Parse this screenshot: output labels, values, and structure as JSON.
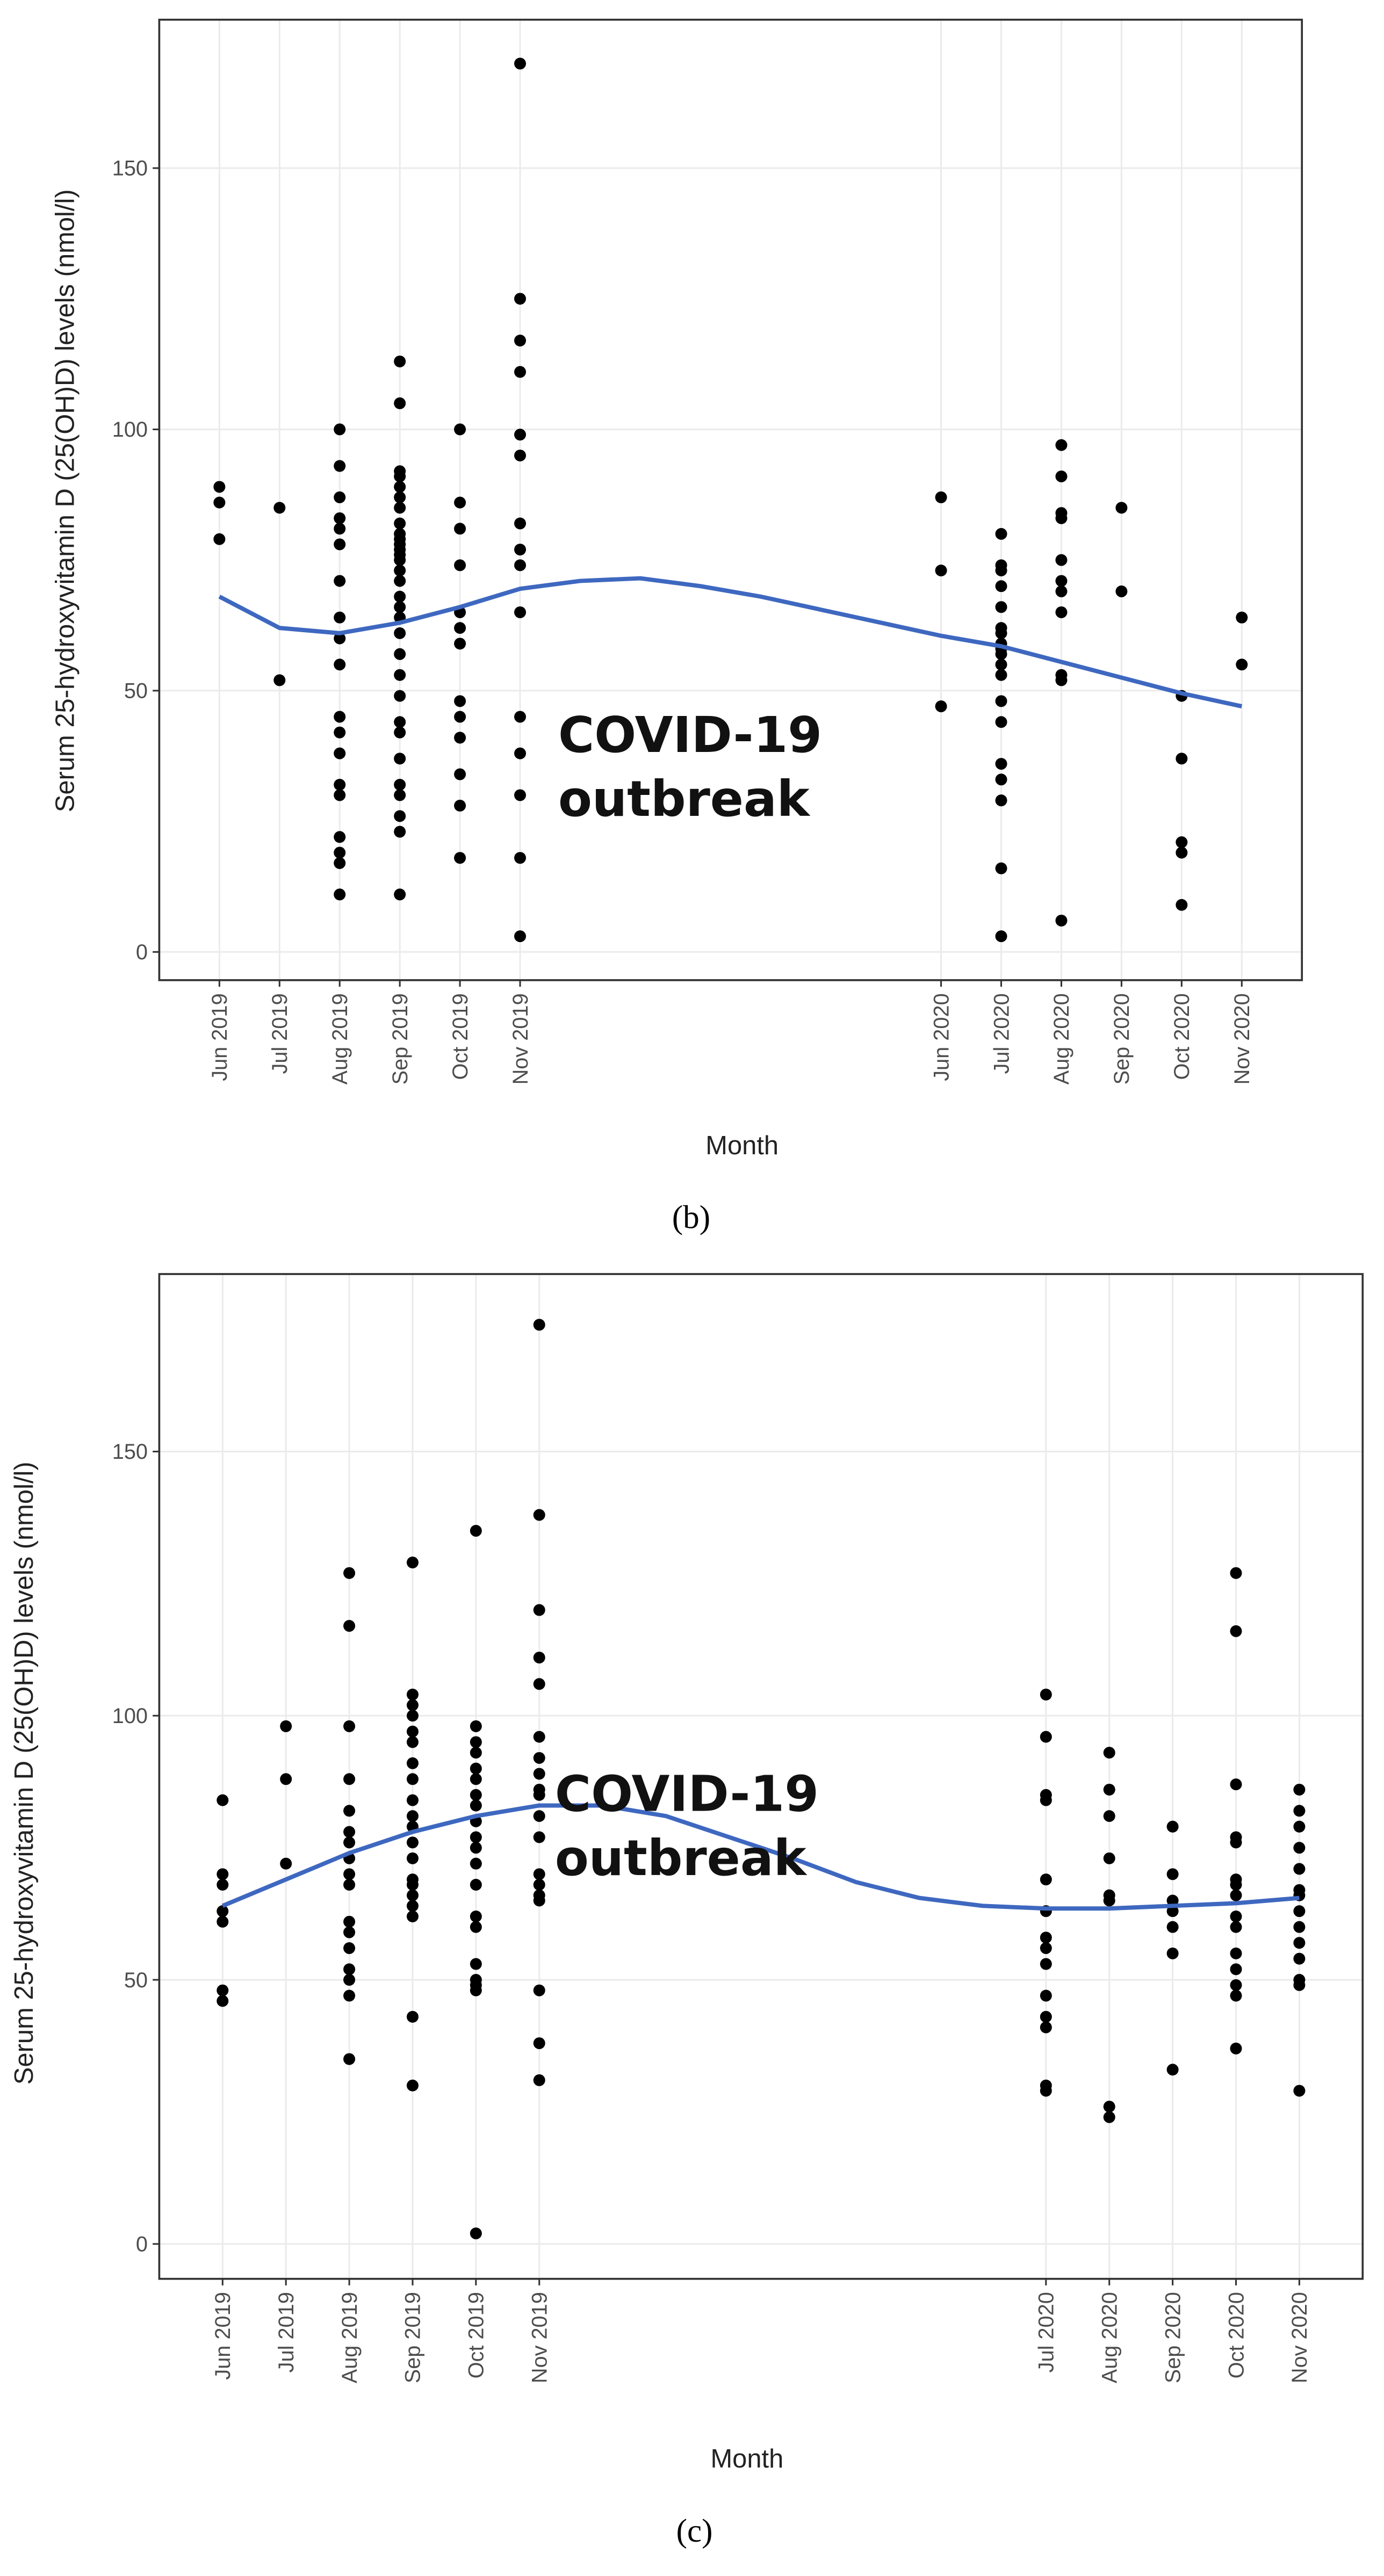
{
  "chart_data": [
    {
      "type": "scatter",
      "caption": "(b)",
      "xlabel": "Month",
      "ylabel": "Serum 25-hydroxyvitamin D (25(OH)D) levels (nmol/l)",
      "annotation": [
        "COVID-19",
        "outbreak"
      ],
      "xlim": [
        "2019-05",
        "2020-12"
      ],
      "ylim": [
        -5.4,
        178.4
      ],
      "yticks": [
        0,
        50,
        100,
        150
      ],
      "grid": true,
      "xticks": [
        {
          "value": "2019-06",
          "label": "Jun 2019"
        },
        {
          "value": "2019-07",
          "label": "Jul 2019"
        },
        {
          "value": "2019-08",
          "label": "Aug 2019"
        },
        {
          "value": "2019-09",
          "label": "Sep 2019"
        },
        {
          "value": "2019-10",
          "label": "Oct 2019"
        },
        {
          "value": "2019-11",
          "label": "Nov 2019"
        },
        {
          "value": "2020-06",
          "label": "Jun 2020"
        },
        {
          "value": "2020-07",
          "label": "Jul 2020"
        },
        {
          "value": "2020-08",
          "label": "Aug 2020"
        },
        {
          "value": "2020-09",
          "label": "Sep 2020"
        },
        {
          "value": "2020-10",
          "label": "Oct 2020"
        },
        {
          "value": "2020-11",
          "label": "Nov 2020"
        }
      ],
      "point_color": "#000000",
      "points": [
        {
          "x": "2019-06",
          "values": [
            89,
            86,
            79
          ]
        },
        {
          "x": "2019-07",
          "values": [
            85,
            52
          ]
        },
        {
          "x": "2019-08",
          "values": [
            100,
            93,
            87,
            83,
            81,
            78,
            71,
            64,
            60,
            55,
            45,
            42,
            38,
            32,
            30,
            22,
            19,
            17,
            11
          ]
        },
        {
          "x": "2019-09",
          "values": [
            113,
            105,
            92,
            91,
            89,
            87,
            85,
            82,
            80,
            79,
            78,
            77,
            76,
            75,
            73,
            71,
            68,
            66,
            64,
            61,
            57,
            53,
            49,
            44,
            42,
            37,
            32,
            30,
            26,
            23,
            11
          ]
        },
        {
          "x": "2019-10",
          "values": [
            100,
            86,
            81,
            74,
            65,
            62,
            59,
            48,
            45,
            41,
            34,
            28,
            18
          ]
        },
        {
          "x": "2019-11",
          "values": [
            170,
            125,
            117,
            111,
            99,
            95,
            82,
            77,
            74,
            65,
            45,
            38,
            30,
            18,
            3
          ]
        },
        {
          "x": "2020-06",
          "values": [
            87,
            73,
            47
          ]
        },
        {
          "x": "2020-07",
          "values": [
            80,
            74,
            73,
            70,
            66,
            62,
            61,
            59,
            58,
            57,
            55,
            53,
            48,
            44,
            36,
            33,
            29,
            16,
            3
          ]
        },
        {
          "x": "2020-08",
          "values": [
            97,
            91,
            84,
            83,
            75,
            71,
            69,
            65,
            53,
            52,
            6
          ]
        },
        {
          "x": "2020-09",
          "values": [
            85,
            69
          ]
        },
        {
          "x": "2020-10",
          "values": [
            49,
            37,
            21,
            19,
            9
          ]
        },
        {
          "x": "2020-11",
          "values": [
            64,
            55
          ]
        }
      ],
      "trend": {
        "color": "#3e68c0",
        "x": [
          "2019-06",
          "2019-07",
          "2019-08",
          "2019-09",
          "2019-10",
          "2019-11",
          "2019-12",
          "2020-01",
          "2020-02",
          "2020-03",
          "2020-04",
          "2020-05",
          "2020-06",
          "2020-07",
          "2020-08",
          "2020-09",
          "2020-10",
          "2020-11"
        ],
        "values": [
          68,
          62,
          61,
          63,
          66,
          69.5,
          71,
          71.5,
          70,
          68,
          65.5,
          63,
          60.5,
          58.5,
          55.5,
          52.5,
          49.5,
          47
        ]
      }
    },
    {
      "type": "scatter",
      "caption": "(c)",
      "xlabel": "Month",
      "ylabel": "Serum 25-hydroxyvitamin D (25(OH)D) levels (nmol/l)",
      "annotation": [
        "COVID-19",
        "outbreak"
      ],
      "xlim": [
        "2019-05",
        "2020-12"
      ],
      "ylim": [
        -6.6,
        183.6
      ],
      "yticks": [
        0,
        50,
        100,
        150
      ],
      "grid": true,
      "xticks": [
        {
          "value": "2019-06",
          "label": "Jun 2019"
        },
        {
          "value": "2019-07",
          "label": "Jul 2019"
        },
        {
          "value": "2019-08",
          "label": "Aug 2019"
        },
        {
          "value": "2019-09",
          "label": "Sep 2019"
        },
        {
          "value": "2019-10",
          "label": "Oct 2019"
        },
        {
          "value": "2019-11",
          "label": "Nov 2019"
        },
        {
          "value": "2020-07",
          "label": "Jul 2020"
        },
        {
          "value": "2020-08",
          "label": "Aug 2020"
        },
        {
          "value": "2020-09",
          "label": "Sep 2020"
        },
        {
          "value": "2020-10",
          "label": "Oct 2020"
        },
        {
          "value": "2020-11",
          "label": "Nov 2020"
        }
      ],
      "point_color": "#000000",
      "points": [
        {
          "x": "2019-06",
          "values": [
            84,
            70,
            68,
            63,
            61,
            48,
            46
          ]
        },
        {
          "x": "2019-07",
          "values": [
            98,
            88,
            72
          ]
        },
        {
          "x": "2019-08",
          "values": [
            127,
            117,
            98,
            88,
            82,
            78,
            76,
            73,
            70,
            68,
            61,
            59,
            56,
            52,
            50,
            47,
            35
          ]
        },
        {
          "x": "2019-09",
          "values": [
            129,
            104,
            102,
            100,
            97,
            95,
            91,
            88,
            84,
            81,
            79,
            76,
            73,
            69,
            68,
            66,
            64,
            62,
            43,
            30
          ]
        },
        {
          "x": "2019-10",
          "values": [
            135,
            98,
            95,
            93,
            90,
            88,
            85,
            83,
            80,
            77,
            75,
            72,
            68,
            62,
            60,
            53,
            50,
            49,
            48,
            2
          ]
        },
        {
          "x": "2019-11",
          "values": [
            174,
            138,
            120,
            111,
            106,
            96,
            92,
            89,
            86,
            85,
            81,
            77,
            70,
            68,
            66,
            65,
            48,
            38,
            31
          ]
        },
        {
          "x": "2020-07",
          "values": [
            104,
            96,
            85,
            84,
            69,
            63,
            58,
            56,
            53,
            47,
            43,
            41,
            30,
            29
          ]
        },
        {
          "x": "2020-08",
          "values": [
            93,
            86,
            81,
            73,
            66,
            65,
            26,
            24
          ]
        },
        {
          "x": "2020-09",
          "values": [
            79,
            70,
            65,
            63,
            60,
            55,
            33
          ]
        },
        {
          "x": "2020-10",
          "values": [
            127,
            116,
            87,
            77,
            76,
            69,
            68,
            66,
            62,
            60,
            55,
            52,
            49,
            47,
            37
          ]
        },
        {
          "x": "2020-11",
          "values": [
            86,
            82,
            79,
            75,
            71,
            67,
            66,
            63,
            60,
            57,
            54,
            50,
            49,
            29
          ]
        }
      ],
      "trend": {
        "color": "#3e68c0",
        "x": [
          "2019-06",
          "2019-07",
          "2019-08",
          "2019-09",
          "2019-10",
          "2019-11",
          "2019-12",
          "2020-01",
          "2020-02",
          "2020-03",
          "2020-04",
          "2020-05",
          "2020-06",
          "2020-07",
          "2020-08",
          "2020-09",
          "2020-10",
          "2020-11"
        ],
        "values": [
          64,
          69,
          74,
          78,
          81,
          83,
          83,
          81,
          77,
          73,
          68.5,
          65.5,
          64,
          63.5,
          63.5,
          64,
          64.5,
          65.5
        ]
      }
    }
  ]
}
